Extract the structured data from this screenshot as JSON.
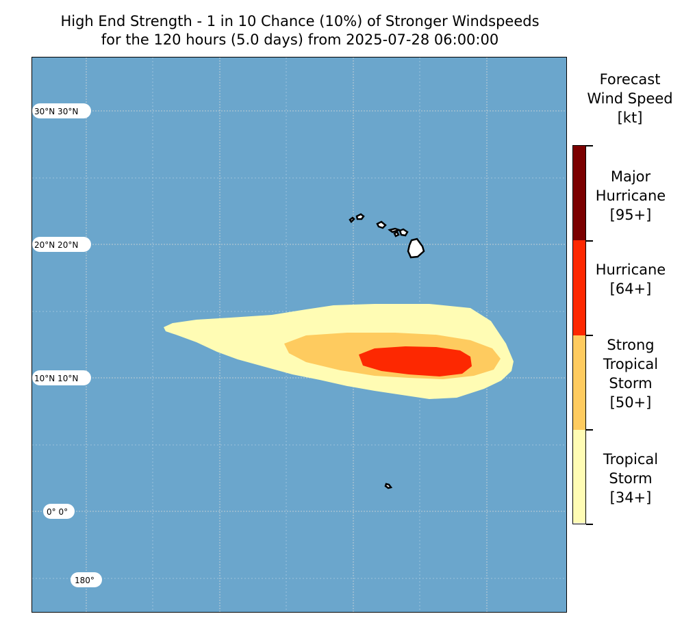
{
  "title": {
    "line1": "High End Strength - 1 in 10 Chance (10%) of Stronger Windspeeds",
    "line2": "for the 120 hours (5.0 days) from 2025-07-28 06:00:00"
  },
  "map": {
    "ocean_color": "#6ba6cc",
    "land_color": "#ffffff",
    "lat_labels": [
      {
        "text": "30°N 30°N"
      },
      {
        "text": "20°N 20°N"
      },
      {
        "text": "10°N 10°N"
      },
      {
        "text": "0° 0°"
      }
    ],
    "lon_label": "180°"
  },
  "swath": [
    {
      "category": "Tropical Storm",
      "color": "#fffcb4"
    },
    {
      "category": "Strong Tropical Storm",
      "color": "#fecb5f"
    },
    {
      "category": "Hurricane",
      "color": "#fd2801"
    }
  ],
  "legend": {
    "title_lines": [
      "Forecast",
      "Wind Speed",
      "[kt]"
    ],
    "items": [
      {
        "lines": [
          "Major",
          "Hurricane",
          "[95+]"
        ],
        "color": "#7b0000"
      },
      {
        "lines": [
          "Hurricane",
          "[64+]"
        ],
        "color": "#fd2801"
      },
      {
        "lines": [
          "Strong",
          "Tropical",
          "Storm",
          "[50+]"
        ],
        "color": "#fecb5f"
      },
      {
        "lines": [
          "Tropical",
          "Storm",
          "[34+]"
        ],
        "color": "#fffcb4"
      }
    ]
  }
}
